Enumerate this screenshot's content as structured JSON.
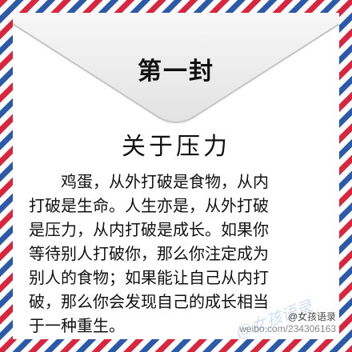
{
  "letter": {
    "number_label": "第一封",
    "title": "关于压力",
    "body_lines": [
      "鸡蛋，从外打破是食物，从内",
      "打破是生命。人生亦是，从外打破",
      "是压力，从内打破是成长。如果你",
      "等待别人打破你，那么你注定成为",
      "别人的食物；如果能让自己从内打",
      "破，那么你会发现自己的成长相当",
      "于一种重生。"
    ]
  },
  "decor": {
    "stripe_red": "#d7263d",
    "stripe_blue": "#2c5aa8",
    "flap_fill": "#ececec",
    "flap_icon": "envelope-flap"
  },
  "footer": {
    "watermark": "@女孩语录",
    "account": "@女孩语录",
    "weibo_url": "weibo.com/234306163"
  }
}
